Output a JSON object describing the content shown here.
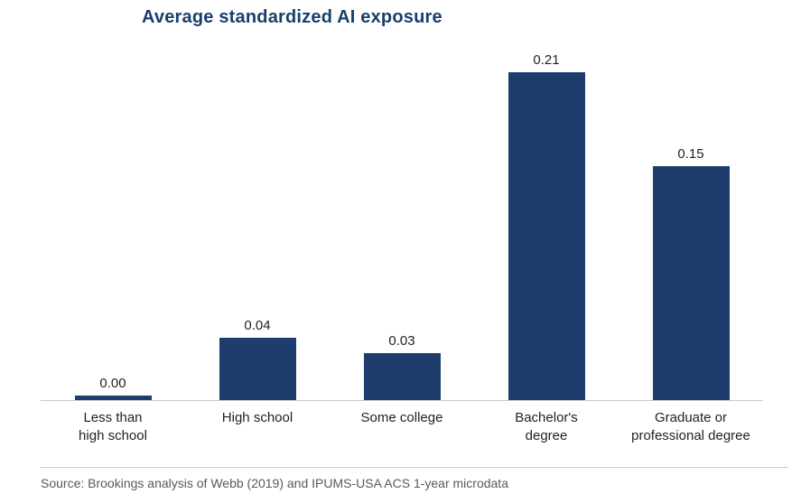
{
  "chart_data": {
    "type": "bar",
    "title": "Average standardized AI exposure",
    "categories": [
      "Less than\nhigh school",
      "High school",
      "Some college",
      "Bachelor's\ndegree",
      "Graduate or\nprofessional degree"
    ],
    "values": [
      0.0,
      0.04,
      0.03,
      0.21,
      0.15
    ],
    "value_labels": [
      "0.00",
      "0.04",
      "0.03",
      "0.21",
      "0.15"
    ],
    "xlabel": "",
    "ylabel": "",
    "ylim": [
      0,
      0.21
    ],
    "grid": "off",
    "legend": "none"
  },
  "colors": {
    "bar": "#1d3e6c",
    "title": "#17406d",
    "axis_line": "#c9c9c9",
    "value_text": "#231f20",
    "source_text": "#58595b"
  },
  "source": {
    "text": "Source: Brookings analysis of Webb (2019) and IPUMS-USA ACS 1-year microdata"
  }
}
